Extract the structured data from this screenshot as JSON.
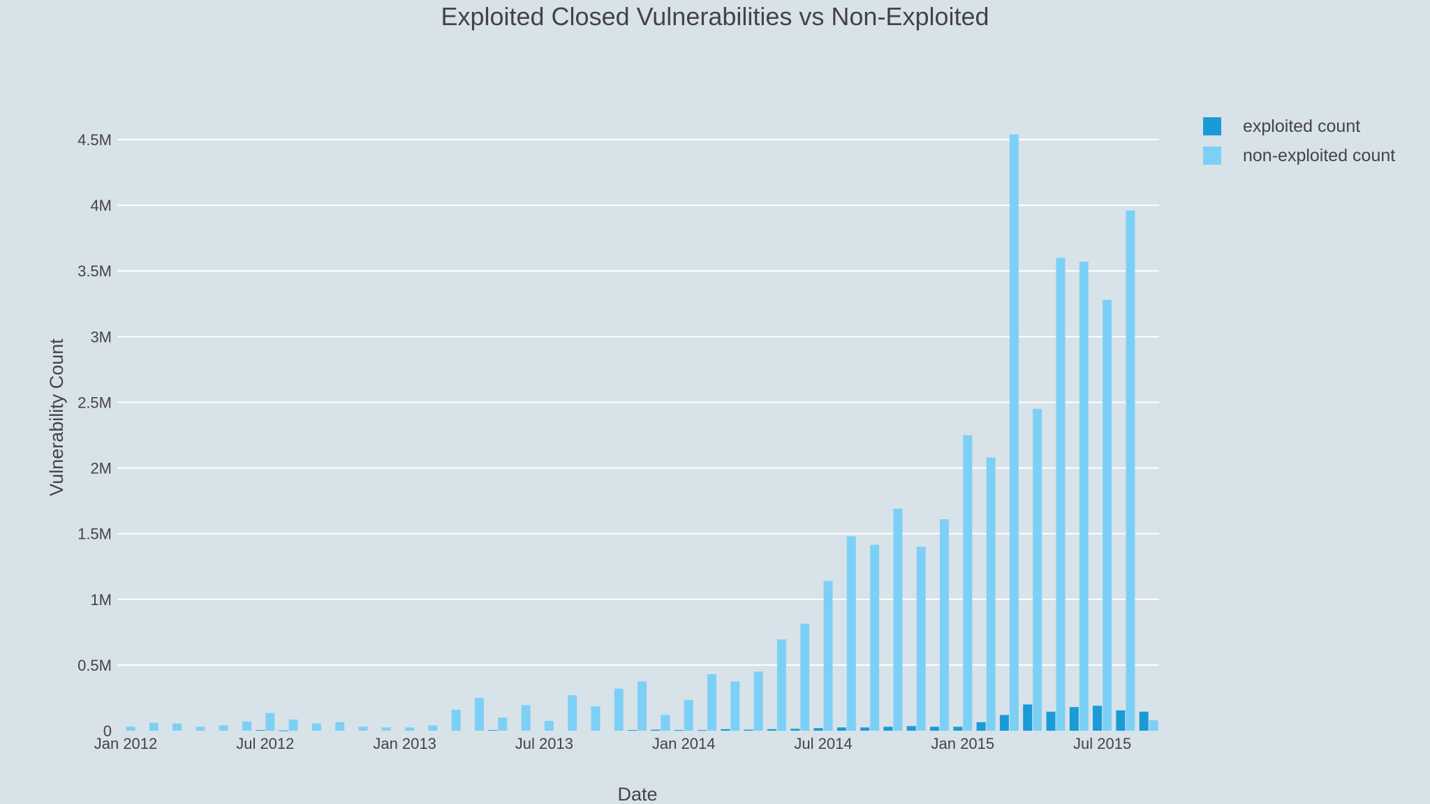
{
  "chart_data": {
    "type": "bar",
    "title": "Exploited Closed Vulnerabilities vs Non-Exploited",
    "xlabel": "Date",
    "ylabel": "Vulnerability Count",
    "ylim": [
      0,
      4500000
    ],
    "y_ticks": [
      0,
      500000,
      1000000,
      1500000,
      2000000,
      2500000,
      3000000,
      3500000,
      4000000,
      4500000
    ],
    "y_tick_labels": [
      "0",
      "0.5M",
      "1M",
      "1.5M",
      "2M",
      "2.5M",
      "3M",
      "3.5M",
      "4M",
      "4.5M"
    ],
    "x_tick_labels": [
      "Jan 2012",
      "Jul 2012",
      "Jan 2013",
      "Jul 2013",
      "Jan 2014",
      "Jul 2014",
      "Jan 2015",
      "Jul 2015"
    ],
    "x_tick_months": [
      "2012-01",
      "2012-07",
      "2013-01",
      "2013-07",
      "2014-01",
      "2014-07",
      "2015-01",
      "2015-07"
    ],
    "categories": [
      "2012-01",
      "2012-02",
      "2012-03",
      "2012-04",
      "2012-05",
      "2012-06",
      "2012-07",
      "2012-08",
      "2012-09",
      "2012-10",
      "2012-11",
      "2012-12",
      "2013-01",
      "2013-02",
      "2013-03",
      "2013-04",
      "2013-05",
      "2013-06",
      "2013-07",
      "2013-08",
      "2013-09",
      "2013-10",
      "2013-11",
      "2013-12",
      "2014-01",
      "2014-02",
      "2014-03",
      "2014-04",
      "2014-05",
      "2014-06",
      "2014-07",
      "2014-08",
      "2014-09",
      "2014-10",
      "2014-11",
      "2014-12",
      "2015-01",
      "2015-02",
      "2015-03",
      "2015-04",
      "2015-05",
      "2015-06",
      "2015-07",
      "2015-08",
      "2015-09"
    ],
    "series": [
      {
        "name": "exploited count",
        "color": "#1a9bd7",
        "values": [
          0,
          0,
          0,
          0,
          0,
          0,
          5000,
          2000,
          0,
          0,
          0,
          0,
          0,
          0,
          0,
          0,
          5000,
          0,
          0,
          0,
          0,
          0,
          5000,
          8000,
          5000,
          5000,
          12000,
          8000,
          12000,
          15000,
          20000,
          25000,
          25000,
          30000,
          35000,
          30000,
          30000,
          65000,
          120000,
          200000,
          145000,
          180000,
          190000,
          155000,
          145000
        ]
      },
      {
        "name": "non-exploited count",
        "color": "#7dd0f5",
        "values": [
          30000,
          60000,
          55000,
          30000,
          40000,
          70000,
          135000,
          85000,
          55000,
          65000,
          30000,
          25000,
          25000,
          40000,
          160000,
          250000,
          100000,
          195000,
          75000,
          270000,
          185000,
          320000,
          375000,
          120000,
          235000,
          430000,
          375000,
          450000,
          695000,
          815000,
          1140000,
          1480000,
          1415000,
          1690000,
          1400000,
          1610000,
          2250000,
          2080000,
          4540000,
          2450000,
          3600000,
          3570000,
          3280000,
          3960000,
          80000
        ]
      }
    ],
    "legend": {
      "position": "top-right"
    },
    "grid": {
      "y": true,
      "x": false
    }
  }
}
